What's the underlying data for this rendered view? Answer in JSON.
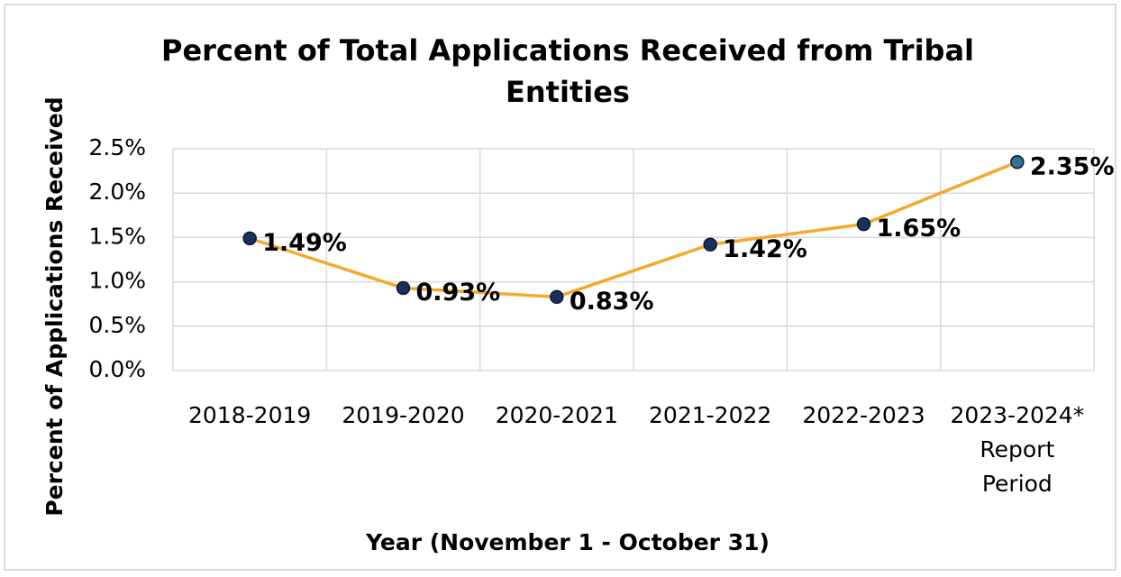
{
  "chart_data": {
    "type": "line",
    "title": "Percent of Total Applications Received from Tribal Entities",
    "xlabel": "Year (November 1 - October 31)",
    "ylabel": "Percent of Applications Received",
    "categories": [
      "2018-2019",
      "2019-2020",
      "2020-2021",
      "2021-2022",
      "2022-2023",
      "2023-2024* Report Period"
    ],
    "series": [
      {
        "name": "Percent of Total Applications",
        "color": "#f5a92a",
        "marker_color": "#1b2f5c",
        "marker_colors": [
          "#1b2f5c",
          "#1b2f5c",
          "#1b2f5c",
          "#1b2f5c",
          "#1b2f5c",
          "#2f7393"
        ],
        "values": [
          1.49,
          0.93,
          0.83,
          1.42,
          1.65,
          2.35
        ],
        "value_labels": [
          "1.49%",
          "0.93%",
          "0.83%",
          "1.42%",
          "1.65%",
          "2.35%"
        ]
      }
    ],
    "ylim": [
      0,
      2.5
    ],
    "yticks": [
      {
        "value": 0,
        "label": "0.0%"
      },
      {
        "value": 0.5,
        "label": "0.5%"
      },
      {
        "value": 1,
        "label": "1.0%"
      },
      {
        "value": 1.5,
        "label": "1.5%"
      },
      {
        "value": 2,
        "label": "2.0%"
      },
      {
        "value": 2.5,
        "label": "2.5%"
      }
    ],
    "grid": true,
    "legend": false
  }
}
